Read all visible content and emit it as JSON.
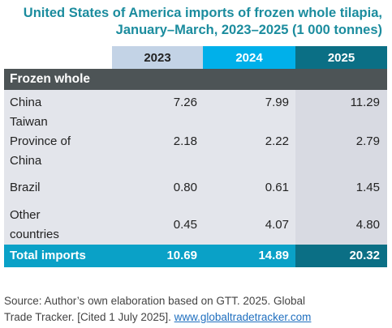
{
  "title": {
    "line1": "United States of America imports of frozen whole tilapia,",
    "line2": "January–March, 2023–2025 (1 000 tonnes)"
  },
  "colors": {
    "title": "#1b8c9e",
    "header_2023": "#c3d3e6",
    "header_2024": "#00b0ea",
    "header_2025": "#0b6f85",
    "section_bg": "#4d5456",
    "total_bg": "#0aa1c7"
  },
  "chart_data": {
    "type": "table",
    "columns": [
      "2023",
      "2024",
      "2025"
    ],
    "section": "Frozen whole",
    "rows": [
      {
        "label_lines": [
          "China"
        ],
        "values": [
          "7.26",
          "7.99",
          "11.29"
        ]
      },
      {
        "label_lines": [
          "Taiwan",
          "Province of",
          "China"
        ],
        "values": [
          "2.18",
          "2.22",
          "2.79"
        ]
      },
      {
        "label_lines": [
          "Brazil"
        ],
        "values": [
          "0.80",
          "0.61",
          "1.45"
        ]
      },
      {
        "label_lines": [
          "Other",
          "countries"
        ],
        "values": [
          "0.45",
          "4.07",
          "4.80"
        ]
      }
    ],
    "total": {
      "label": "Total imports",
      "values": [
        "10.69",
        "14.89",
        "20.32"
      ]
    }
  },
  "source": {
    "text_line1": "Source: Author’s own elaboration based on GTT. 2025. Global",
    "text_line2": "Trade Tracker. [Cited 1 July 2025]. ",
    "link": "www.globaltradetracker.com"
  }
}
